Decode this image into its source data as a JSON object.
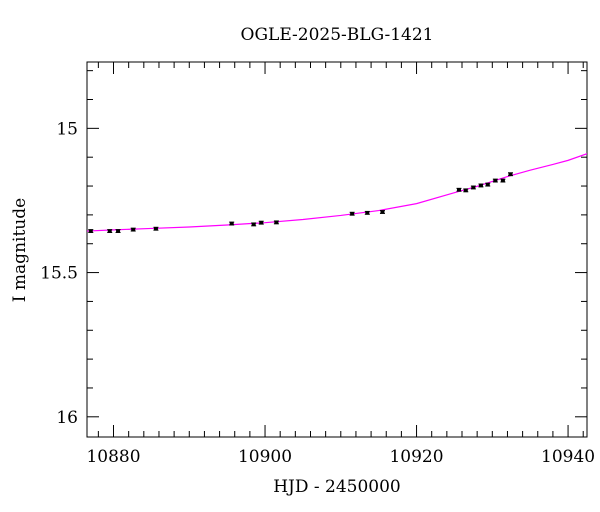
{
  "chart_data": {
    "type": "scatter",
    "title": "OGLE-2025-BLG-1421",
    "xlabel": "HJD - 2450000",
    "ylabel": "I magnitude",
    "xlim": [
      10876.5,
      10942.5
    ],
    "ylim": [
      16.07,
      14.77
    ],
    "y_inverted": true,
    "grid": false,
    "x_ticks": [
      10880,
      10900,
      10920,
      10940
    ],
    "x_tick_labels": [
      "10880",
      "10900",
      "10920",
      "10940"
    ],
    "y_ticks": [
      15,
      15.5,
      16
    ],
    "y_tick_labels": [
      "15",
      "15.5",
      "16"
    ],
    "colors": {
      "data": "#000000",
      "model": "#ff00ff",
      "axes": "#000000"
    },
    "series": [
      {
        "kind": "points_with_errorbars",
        "x": [
          10877.0,
          10879.5,
          10880.6,
          10882.6,
          10885.6,
          10895.6,
          10898.5,
          10899.5,
          10901.5,
          10911.5,
          10913.5,
          10915.5,
          10925.6,
          10926.5,
          10927.5,
          10928.5,
          10929.4,
          10930.4,
          10931.4,
          10932.4
        ],
        "y": [
          15.356,
          15.356,
          15.356,
          15.351,
          15.348,
          15.33,
          15.333,
          15.327,
          15.326,
          15.296,
          15.293,
          15.29,
          15.213,
          15.215,
          15.205,
          15.198,
          15.195,
          15.181,
          15.181,
          15.159
        ],
        "yerr": [
          0.005,
          0.005,
          0.005,
          0.005,
          0.005,
          0.005,
          0.005,
          0.005,
          0.005,
          0.005,
          0.005,
          0.005,
          0.005,
          0.005,
          0.005,
          0.005,
          0.005,
          0.005,
          0.005,
          0.005
        ]
      },
      {
        "kind": "model_curve",
        "x": [
          10876.5,
          10880,
          10885,
          10890,
          10895,
          10900,
          10905,
          10910,
          10915,
          10920,
          10925,
          10928,
          10930,
          10932,
          10935,
          10938,
          10940,
          10942.5
        ],
        "y": [
          15.356,
          15.352,
          15.347,
          15.342,
          15.335,
          15.327,
          15.316,
          15.302,
          15.285,
          15.261,
          15.223,
          15.201,
          15.184,
          15.167,
          15.145,
          15.125,
          15.111,
          15.088
        ]
      }
    ]
  }
}
